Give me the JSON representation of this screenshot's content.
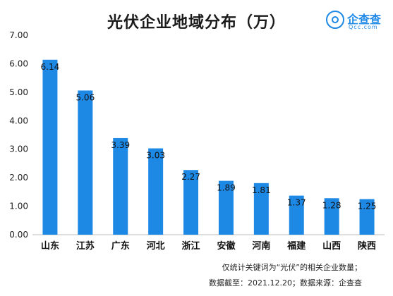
{
  "chart_data": {
    "type": "bar",
    "title": "光伏企业地域分布（万）",
    "categories": [
      "山东",
      "江苏",
      "广东",
      "河北",
      "浙江",
      "安徽",
      "河南",
      "福建",
      "山西",
      "陕西"
    ],
    "values": [
      6.14,
      5.06,
      3.39,
      3.03,
      2.27,
      1.89,
      1.81,
      1.37,
      1.28,
      1.25
    ],
    "value_labels": [
      "6.14",
      "5.06",
      "3.39",
      "3.03",
      "2.27",
      "1.89",
      "1.81",
      "1.37",
      "1.28",
      "1.25"
    ],
    "y_ticks": [
      "0.00",
      "1.00",
      "2.00",
      "3.00",
      "4.00",
      "5.00",
      "6.00",
      "7.00"
    ],
    "ylim": [
      0,
      7
    ],
    "xlabel": "",
    "ylabel": "",
    "grid": false,
    "legend": false,
    "bar_color": "#1e88e5"
  },
  "logo": {
    "name": "企查查",
    "domain": "Qcc.com",
    "color": "#1e88e5"
  },
  "notes": {
    "line1": "仅统计关键词为“光伏”的相关企业数量；",
    "line2": "数据截至：2021.12.20；数据来源：企查查"
  }
}
